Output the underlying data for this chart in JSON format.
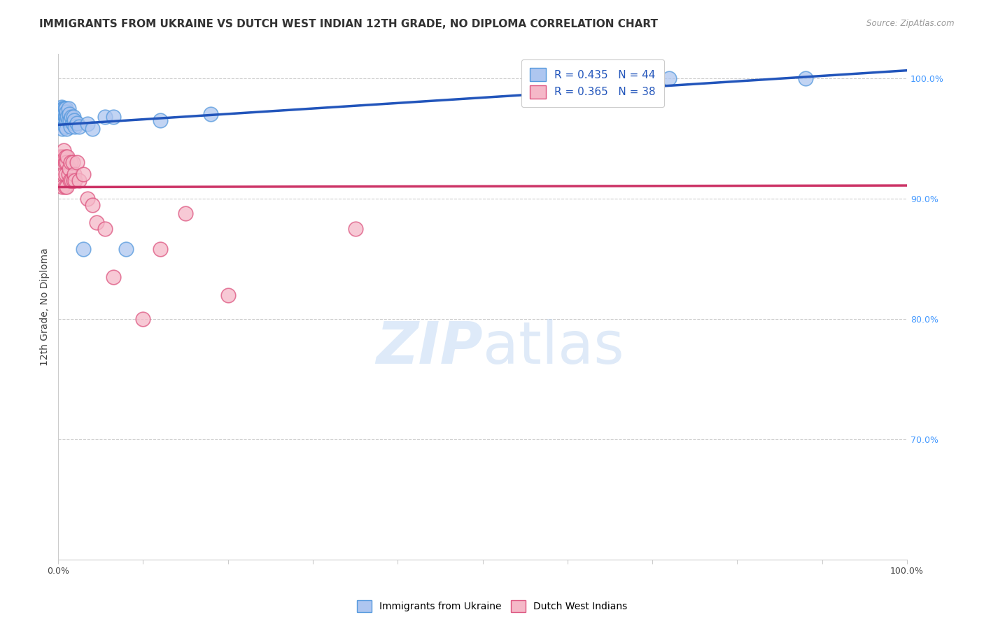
{
  "title": "IMMIGRANTS FROM UKRAINE VS DUTCH WEST INDIAN 12TH GRADE, NO DIPLOMA CORRELATION CHART",
  "source": "Source: ZipAtlas.com",
  "ylabel": "12th Grade, No Diploma",
  "xlim": [
    0,
    1.0
  ],
  "ylim": [
    0.6,
    1.02
  ],
  "grid_color": "#cccccc",
  "background_color": "#ffffff",
  "ukraine_color": "#aec6f0",
  "ukraine_edge_color": "#5599dd",
  "dutch_color": "#f5b8c8",
  "dutch_edge_color": "#dd5580",
  "ukraine_R": 0.435,
  "ukraine_N": 44,
  "dutch_R": 0.365,
  "dutch_N": 38,
  "ukraine_line_color": "#2255bb",
  "dutch_line_color": "#cc3366",
  "legend_text_color": "#2255bb",
  "legend_label1": "Immigrants from Ukraine",
  "legend_label2": "Dutch West Indians",
  "ukraine_x": [
    0.002,
    0.003,
    0.003,
    0.004,
    0.004,
    0.005,
    0.005,
    0.005,
    0.006,
    0.006,
    0.007,
    0.007,
    0.008,
    0.008,
    0.008,
    0.009,
    0.009,
    0.01,
    0.01,
    0.01,
    0.011,
    0.012,
    0.012,
    0.013,
    0.014,
    0.015,
    0.016,
    0.017,
    0.018,
    0.019,
    0.02,
    0.022,
    0.025,
    0.03,
    0.035,
    0.04,
    0.055,
    0.065,
    0.08,
    0.12,
    0.18,
    0.62,
    0.88,
    0.72
  ],
  "ukraine_y": [
    0.97,
    0.975,
    0.968,
    0.976,
    0.971,
    0.972,
    0.965,
    0.958,
    0.975,
    0.968,
    0.975,
    0.97,
    0.975,
    0.968,
    0.96,
    0.975,
    0.968,
    0.972,
    0.965,
    0.958,
    0.968,
    0.975,
    0.965,
    0.97,
    0.965,
    0.96,
    0.968,
    0.963,
    0.968,
    0.965,
    0.96,
    0.963,
    0.96,
    0.858,
    0.962,
    0.958,
    0.968,
    0.968,
    0.858,
    0.965,
    0.97,
    1.0,
    1.0,
    1.0
  ],
  "dutch_x": [
    0.002,
    0.003,
    0.004,
    0.005,
    0.005,
    0.006,
    0.007,
    0.007,
    0.008,
    0.008,
    0.009,
    0.009,
    0.01,
    0.01,
    0.011,
    0.012,
    0.013,
    0.014,
    0.015,
    0.016,
    0.017,
    0.018,
    0.019,
    0.02,
    0.022,
    0.025,
    0.03,
    0.035,
    0.04,
    0.045,
    0.055,
    0.065,
    0.1,
    0.2,
    0.12,
    0.15,
    0.35,
    0.62
  ],
  "dutch_y": [
    0.935,
    0.915,
    0.935,
    0.93,
    0.91,
    0.935,
    0.94,
    0.92,
    0.93,
    0.91,
    0.935,
    0.92,
    0.93,
    0.91,
    0.935,
    0.92,
    0.925,
    0.915,
    0.93,
    0.915,
    0.93,
    0.915,
    0.92,
    0.915,
    0.93,
    0.915,
    0.92,
    0.9,
    0.895,
    0.88,
    0.875,
    0.835,
    0.8,
    0.82,
    0.858,
    0.888,
    0.875,
    1.0
  ],
  "watermark_zip": "ZIP",
  "watermark_atlas": "atlas",
  "title_fontsize": 11,
  "tick_fontsize": 9,
  "right_tick_color": "#4499ff"
}
